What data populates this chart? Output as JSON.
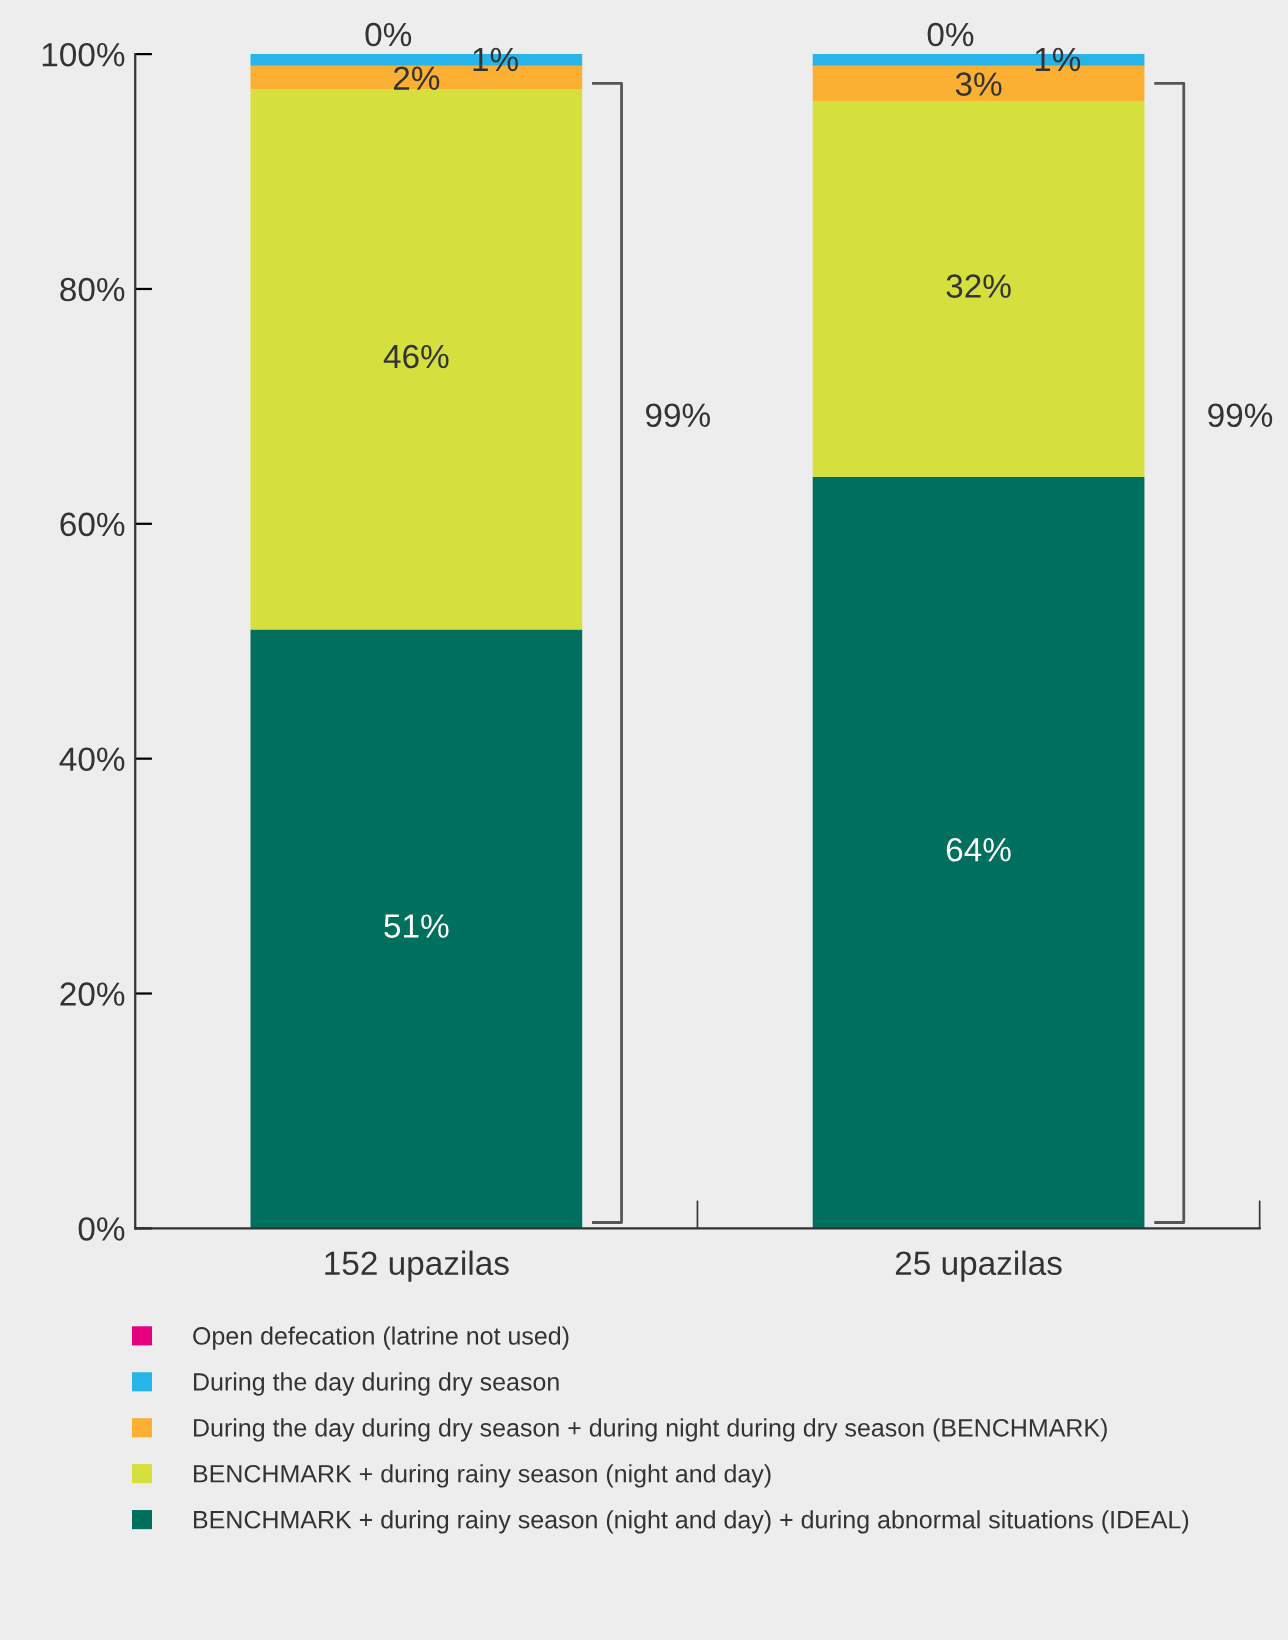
{
  "chart_data": {
    "type": "bar",
    "stacked": true,
    "categories": [
      "152 upazilas",
      "25 upazilas"
    ],
    "series": [
      {
        "name": "BENCHMARK + during rainy season (night and day) + during abnormal situations (IDEAL)",
        "color": "#006f5e",
        "values": [
          51,
          64
        ],
        "value_labels": [
          "51%",
          "64%"
        ]
      },
      {
        "name": "BENCHMARK + during rainy season (night and day)",
        "color": "#d5df3d",
        "values": [
          46,
          32
        ],
        "value_labels": [
          "46%",
          "32%"
        ]
      },
      {
        "name": "During the day during dry season + during night during dry season (BENCHMARK)",
        "color": "#fbb034",
        "values": [
          2,
          3
        ],
        "value_labels": [
          "2%",
          "3%"
        ]
      },
      {
        "name": "During the day during dry season",
        "color": "#27b4e8",
        "values": [
          1,
          1
        ],
        "value_labels": [
          "1%",
          "1%"
        ]
      },
      {
        "name": "Open defecation (latrine not used)",
        "color": "#e5007e",
        "values": [
          0,
          0
        ],
        "value_labels": [
          "0%",
          "0%"
        ]
      }
    ],
    "ylim": [
      0,
      100
    ],
    "yticks": [
      {
        "value": 0,
        "label": "0%"
      },
      {
        "value": 20,
        "label": "20%"
      },
      {
        "value": 40,
        "label": "40%"
      },
      {
        "value": 60,
        "label": "60%"
      },
      {
        "value": 80,
        "label": "80%"
      },
      {
        "value": 100,
        "label": "100%"
      }
    ],
    "annotations": [
      "99%",
      "99%"
    ],
    "legend": "bottom",
    "grid": false
  }
}
